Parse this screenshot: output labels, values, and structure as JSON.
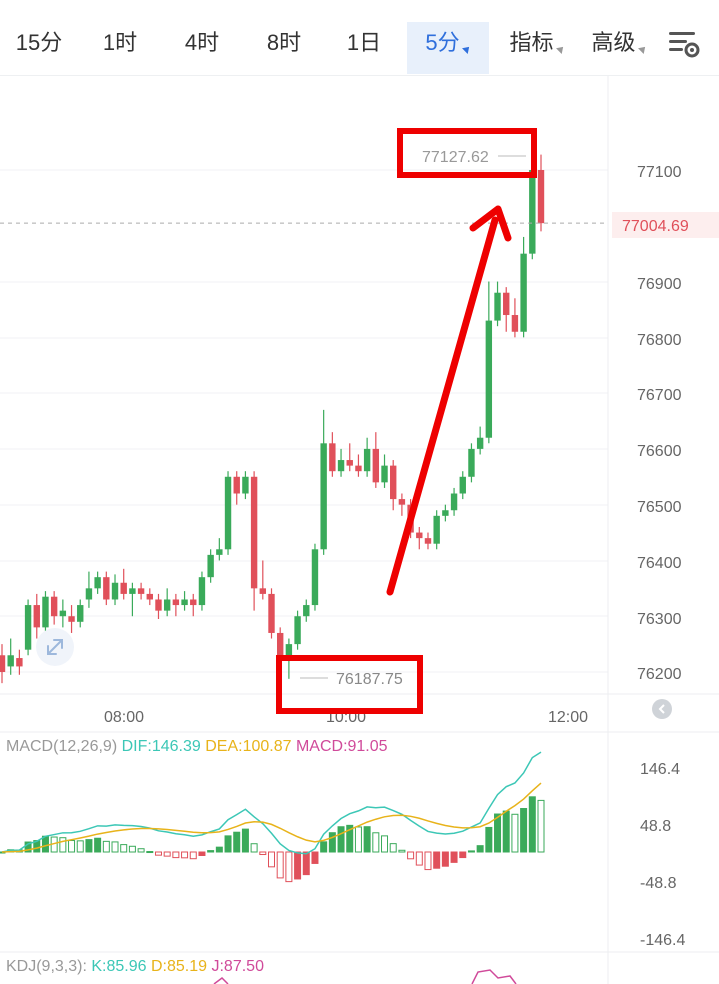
{
  "tabs": [
    {
      "label": "15分",
      "active": false
    },
    {
      "label": "1时",
      "active": false
    },
    {
      "label": "4时",
      "active": false
    },
    {
      "label": "8时",
      "active": false
    },
    {
      "label": "1日",
      "active": false
    },
    {
      "label": "5分",
      "active": true,
      "dropdown": true
    },
    {
      "label": "指标",
      "active": false,
      "dropdown": true
    },
    {
      "label": "高级",
      "active": false,
      "dropdown": true
    }
  ],
  "settings_icon": "chart-settings-icon",
  "colors": {
    "up": "#3aaa5a",
    "down": "#e0505a",
    "dif": "#3cc7b6",
    "dea": "#e8b31a",
    "macd_label": "#d04a9a",
    "highlight": "#ee0000",
    "current_price": "#e0505a"
  },
  "price_chart": {
    "high_marker": "77127.62",
    "low_marker": "76187.75",
    "current_price": "77004.69",
    "y_ticks": [
      "77100",
      "76900",
      "76800",
      "76700",
      "76600",
      "76500",
      "76400",
      "76300",
      "76200"
    ],
    "x_ticks": [
      "08:00",
      "10:00",
      "12:00"
    ]
  },
  "macd": {
    "title": "MACD(12,26,9)",
    "dif": "DIF:146.39",
    "dea": "DEA:100.87",
    "macd": "MACD:91.05",
    "y_ticks": [
      "146.4",
      "48.8",
      "-48.8",
      "-146.4"
    ]
  },
  "kdj": {
    "title": "KDJ(9,3,3):",
    "k": "K:85.96",
    "d": "D:85.19",
    "j": "J:87.50"
  },
  "chart_data": {
    "type": "candlestick",
    "x_ticks": [
      "08:00",
      "10:00",
      "12:00"
    ],
    "ylim": [
      76150,
      77180
    ],
    "high": 77127.62,
    "low": 76187.75,
    "last": 77004.69,
    "candles": [
      [
        76230,
        76200,
        76250,
        76180
      ],
      [
        76210,
        76230,
        76260,
        76195
      ],
      [
        76225,
        76210,
        76240,
        76195
      ],
      [
        76240,
        76320,
        76330,
        76230
      ],
      [
        76320,
        76280,
        76340,
        76260
      ],
      [
        76280,
        76335,
        76345,
        76270
      ],
      [
        76335,
        76300,
        76345,
        76285
      ],
      [
        76300,
        76310,
        76330,
        76280
      ],
      [
        76300,
        76290,
        76320,
        76270
      ],
      [
        76290,
        76320,
        76330,
        76280
      ],
      [
        76330,
        76350,
        76380,
        76315
      ],
      [
        76350,
        76370,
        76380,
        76340
      ],
      [
        76370,
        76330,
        76380,
        76320
      ],
      [
        76330,
        76360,
        76375,
        76320
      ],
      [
        76360,
        76340,
        76385,
        76330
      ],
      [
        76340,
        76350,
        76360,
        76300
      ],
      [
        76350,
        76340,
        76360,
        76330
      ],
      [
        76340,
        76330,
        76350,
        76320
      ],
      [
        76330,
        76310,
        76340,
        76295
      ],
      [
        76310,
        76330,
        76350,
        76300
      ],
      [
        76330,
        76320,
        76340,
        76300
      ],
      [
        76320,
        76330,
        76345,
        76310
      ],
      [
        76330,
        76320,
        76340,
        76300
      ],
      [
        76320,
        76370,
        76380,
        76310
      ],
      [
        76370,
        76410,
        76420,
        76360
      ],
      [
        76410,
        76420,
        76440,
        76400
      ],
      [
        76420,
        76550,
        76560,
        76410
      ],
      [
        76550,
        76520,
        76560,
        76500
      ],
      [
        76520,
        76550,
        76560,
        76510
      ],
      [
        76550,
        76350,
        76560,
        76310
      ],
      [
        76350,
        76340,
        76400,
        76330
      ],
      [
        76340,
        76270,
        76350,
        76260
      ],
      [
        76270,
        76220,
        76280,
        76200
      ],
      [
        76220,
        76250,
        76260,
        76187.75
      ],
      [
        76250,
        76300,
        76310,
        76240
      ],
      [
        76300,
        76320,
        76330,
        76290
      ],
      [
        76320,
        76420,
        76430,
        76310
      ],
      [
        76420,
        76610,
        76670,
        76410
      ],
      [
        76610,
        76560,
        76630,
        76550
      ],
      [
        76560,
        76580,
        76600,
        76550
      ],
      [
        76580,
        76570,
        76610,
        76560
      ],
      [
        76570,
        76560,
        76590,
        76550
      ],
      [
        76560,
        76600,
        76620,
        76550
      ],
      [
        76600,
        76540,
        76630,
        76530
      ],
      [
        76540,
        76570,
        76590,
        76530
      ],
      [
        76570,
        76510,
        76580,
        76490
      ],
      [
        76510,
        76500,
        76520,
        76480
      ],
      [
        76500,
        76450,
        76510,
        76440
      ],
      [
        76450,
        76440,
        76460,
        76420
      ],
      [
        76440,
        76430,
        76450,
        76420
      ],
      [
        76430,
        76480,
        76490,
        76420
      ],
      [
        76480,
        76490,
        76500,
        76470
      ],
      [
        76490,
        76520,
        76530,
        76480
      ],
      [
        76520,
        76550,
        76560,
        76510
      ],
      [
        76550,
        76600,
        76610,
        76540
      ],
      [
        76600,
        76620,
        76640,
        76590
      ],
      [
        76620,
        76830,
        76900,
        76610
      ],
      [
        76830,
        76880,
        76900,
        76820
      ],
      [
        76880,
        76840,
        76890,
        76810
      ],
      [
        76840,
        76810,
        76870,
        76800
      ],
      [
        76810,
        76950,
        76980,
        76800
      ],
      [
        76950,
        77100,
        77110,
        76940
      ],
      [
        77100,
        77004.69,
        77127.62,
        76990
      ]
    ]
  }
}
